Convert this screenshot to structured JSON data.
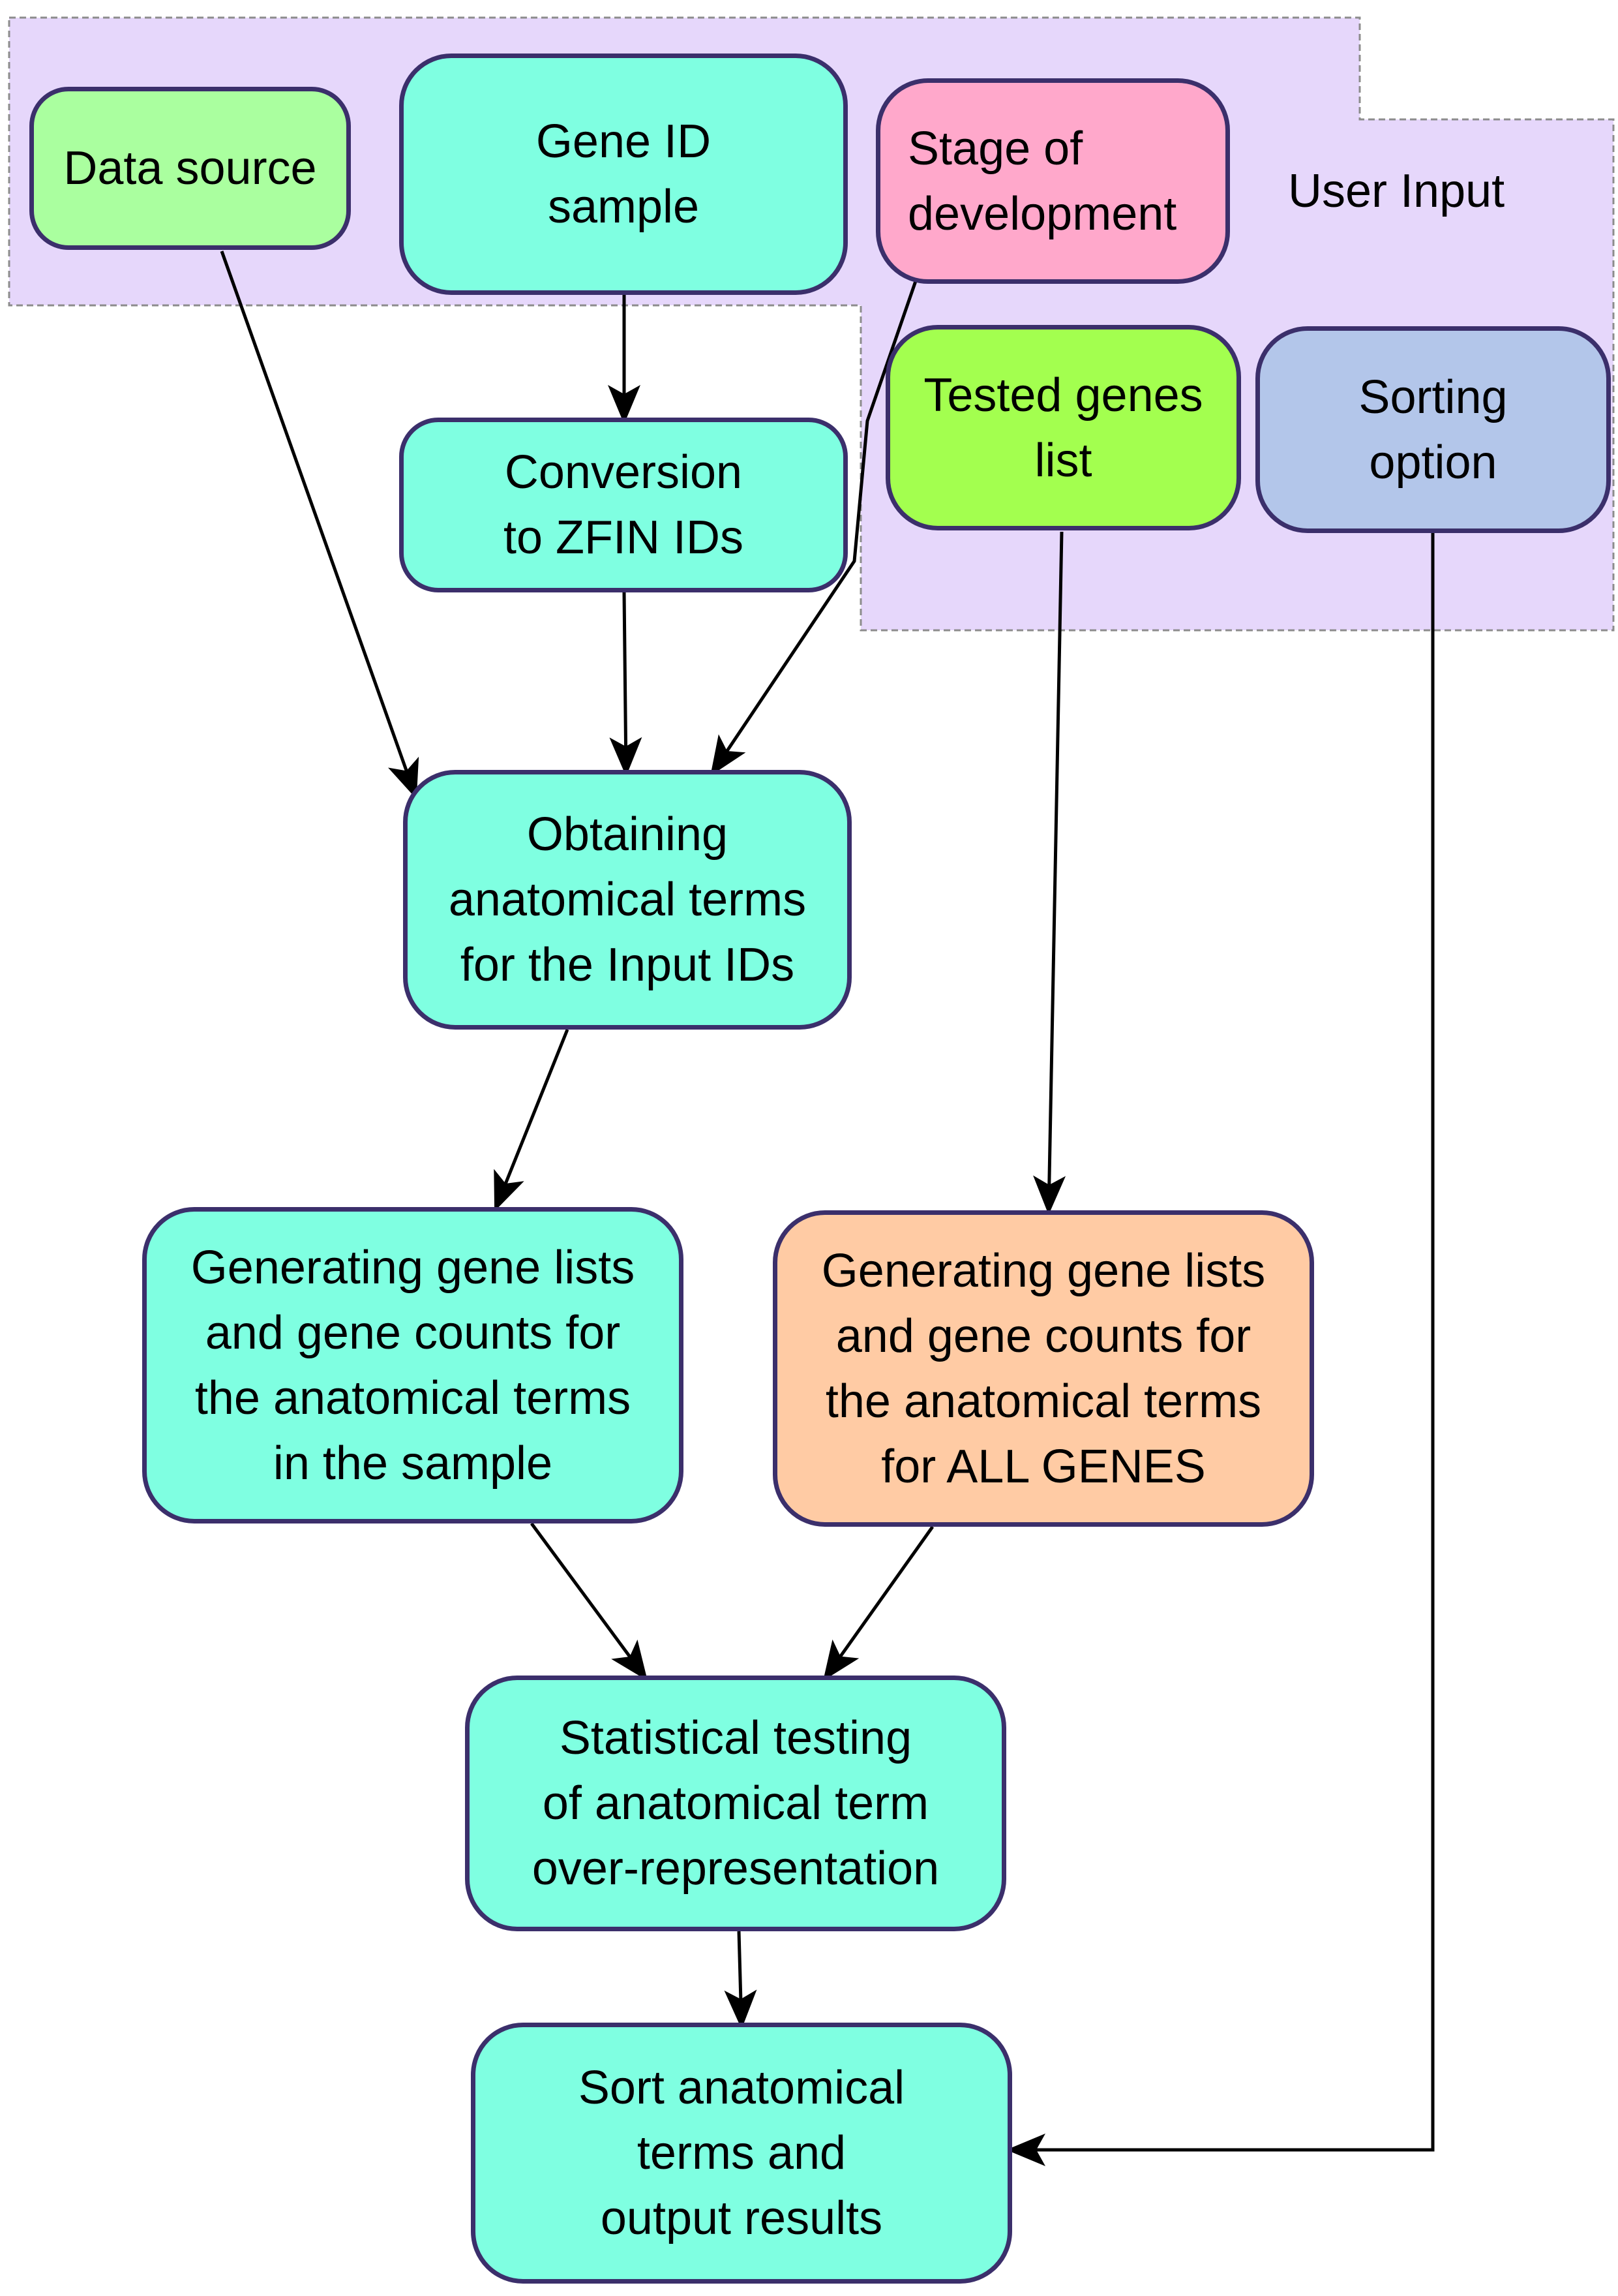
{
  "region": {
    "label": "User Input"
  },
  "nodes": {
    "data_source": "Data source",
    "gene_id_sample": "Gene ID\nsample",
    "stage_of_development": "Stage of\ndevelopment",
    "tested_genes_list": "Tested genes\nlist",
    "sorting_option": "Sorting\noption",
    "conversion_zfin": "Conversion\nto ZFIN IDs",
    "obtaining_terms": "Obtaining\nanatomical terms\nfor the Input IDs",
    "gen_sample": "Generating gene lists\nand gene counts for\nthe anatomical terms\nin the sample",
    "gen_all": "Generating gene lists\nand gene counts for\nthe anatomical terms\nfor ALL GENES",
    "statistical_testing": "Statistical testing\nof anatomical term\nover-representation",
    "sort_output": "Sort anatomical\nterms and\noutput results"
  },
  "colors": {
    "region_fill": "#e6d7fb",
    "node_border": "#3b2f6b",
    "cyan": "#7fffe1",
    "light_green": "#aaff9f",
    "pink": "#ffa8cb",
    "lime": "#a3ff4f",
    "blue": "#b3c6ea",
    "orange": "#ffcba4"
  }
}
